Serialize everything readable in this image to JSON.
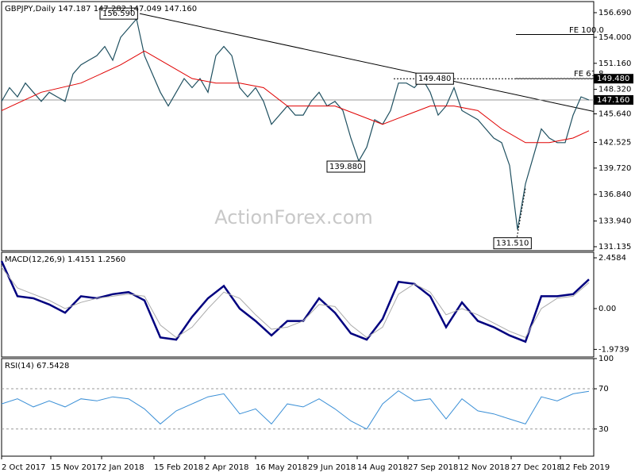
{
  "chart_data": [
    {
      "type": "line",
      "title": "GBPJPY,Daily 147.187 147.282 147.049 147.160",
      "watermark": "ActionForex.com",
      "xlim": [
        0,
        373
      ],
      "ylim": [
        130.7,
        157.9
      ],
      "yticks": [
        {
          "value": 156.69,
          "label": "156.690"
        },
        {
          "value": 154.0,
          "label": "154.000"
        },
        {
          "value": 151.16,
          "label": "151.160"
        },
        {
          "value": 148.32,
          "label": "148.320"
        },
        {
          "value": 145.64,
          "label": "145.640"
        },
        {
          "value": 142.525,
          "label": "142.525"
        },
        {
          "value": 139.72,
          "label": "139.720"
        },
        {
          "value": 136.84,
          "label": "136.840"
        },
        {
          "value": 133.94,
          "label": "133.940"
        },
        {
          "value": 131.135,
          "label": "131.135"
        }
      ],
      "series": [
        {
          "name": "GBPJPY",
          "color": "#1f5060",
          "width": 1.2,
          "x": [
            0,
            5,
            10,
            15,
            20,
            25,
            30,
            35,
            40,
            45,
            50,
            55,
            60,
            65,
            70,
            75,
            80,
            85,
            90,
            95,
            100,
            105,
            110,
            115,
            120,
            125,
            130,
            135,
            140,
            145,
            150,
            155,
            160,
            165,
            170,
            175,
            180,
            185,
            190,
            195,
            200,
            205,
            210,
            215,
            220,
            225,
            230,
            235,
            240,
            245,
            250,
            255,
            260,
            265,
            270,
            275,
            280,
            285,
            290,
            295,
            300,
            305,
            310,
            315,
            320,
            325,
            330,
            335,
            340,
            345,
            350,
            355,
            360,
            365,
            370
          ],
          "values": [
            147.0,
            148.5,
            147.5,
            149,
            148,
            147,
            148,
            147.5,
            147,
            150,
            151,
            151.5,
            152,
            153,
            151.5,
            154,
            155,
            156,
            152,
            150,
            148,
            146.5,
            148,
            149.5,
            148.5,
            149.5,
            148,
            152,
            153,
            152,
            148.5,
            147.5,
            148.5,
            147,
            144.5,
            145.5,
            146.5,
            145.5,
            145.5,
            147,
            148,
            146.5,
            147,
            146,
            143,
            140.5,
            142,
            145,
            144.5,
            146,
            149,
            149,
            148.5,
            149.5,
            148,
            145.5,
            146.5,
            148.5,
            146,
            145.5,
            145,
            144,
            143,
            142.5,
            140,
            133,
            138,
            141,
            144,
            143,
            142.5,
            142.5,
            145.5,
            147.5,
            147.16
          ]
        },
        {
          "name": "SMA",
          "color": "#e00000",
          "width": 1,
          "x": [
            0,
            25,
            50,
            75,
            90,
            105,
            120,
            135,
            150,
            165,
            180,
            195,
            210,
            225,
            240,
            255,
            270,
            285,
            300,
            315,
            330,
            345,
            360,
            370
          ],
          "values": [
            146,
            148,
            149,
            151,
            152.5,
            151,
            149.5,
            149,
            149,
            148.5,
            146.5,
            146.5,
            146.5,
            145.5,
            144.5,
            145.5,
            146.5,
            146.5,
            146,
            144,
            142.5,
            142.5,
            143,
            143.8
          ]
        }
      ],
      "lines": [
        {
          "x": [
            87,
            373
          ],
          "y": [
            156.59,
            145.9
          ],
          "color": "#000",
          "dash": "none"
        },
        {
          "x": [
            247,
            373
          ],
          "y": [
            149.48,
            149.48
          ],
          "color": "#000",
          "dash": "2,2"
        },
        {
          "x": [
            0,
            373
          ],
          "y": [
            147.16,
            147.16
          ],
          "color": "#999",
          "dash": "none"
        },
        {
          "x": [
            324,
            373
          ],
          "y": [
            154.3,
            154.3
          ],
          "color": "#000",
          "dash": "none"
        },
        {
          "x": [
            324,
            373
          ],
          "y": [
            149.5,
            149.5
          ],
          "color": "#000",
          "dash": "2,2"
        },
        {
          "x": [
            324,
            330
          ],
          "y": [
            131.51,
            137.5
          ],
          "color": "#000",
          "dash": "2,2"
        }
      ],
      "annotations": [
        {
          "text": "156.590",
          "x": 62,
          "y": 156.59,
          "box": true
        },
        {
          "text": "149.480",
          "x": 261,
          "y": 149.48,
          "box": true
        },
        {
          "text": "139.880",
          "x": 205,
          "y": 139.88,
          "box": true
        },
        {
          "text": "131.510",
          "x": 310,
          "y": 131.51,
          "box": true
        },
        {
          "text": "FE 100.0",
          "x": 356,
          "y": 154.8,
          "box": false
        },
        {
          "text": "FE 61.8",
          "x": 359,
          "y": 150.0,
          "box": false
        }
      ],
      "price_markers": [
        {
          "value": 149.48,
          "label": "149.480"
        },
        {
          "value": 147.16,
          "label": "147.160"
        }
      ]
    },
    {
      "type": "line",
      "title": "MACD(12,26,9) 1.4151 1.2560",
      "xlim": [
        0,
        373
      ],
      "ylim": [
        -2.343,
        2.727
      ],
      "yticks": [
        2.4584,
        {
          "value": 0,
          "label": "0.00"
        },
        -1.9739
      ],
      "series": [
        {
          "name": "MACD",
          "color": "#00007f",
          "width": 2.5,
          "x": [
            0,
            10,
            20,
            30,
            40,
            50,
            60,
            70,
            80,
            90,
            100,
            110,
            120,
            130,
            140,
            150,
            160,
            170,
            180,
            190,
            200,
            210,
            220,
            230,
            240,
            250,
            260,
            270,
            280,
            290,
            300,
            310,
            320,
            330,
            340,
            350,
            360,
            370
          ],
          "values": [
            2.3,
            0.6,
            0.5,
            0.2,
            -0.2,
            0.6,
            0.5,
            0.7,
            0.8,
            0.4,
            -1.4,
            -1.5,
            -0.4,
            0.5,
            1.1,
            0.0,
            -0.6,
            -1.3,
            -0.6,
            -0.6,
            0.5,
            -0.2,
            -1.2,
            -1.5,
            -0.5,
            1.3,
            1.2,
            0.6,
            -0.9,
            0.3,
            -0.6,
            -0.9,
            -1.3,
            -1.6,
            0.6,
            0.6,
            0.7,
            1.4151
          ]
        },
        {
          "name": "Signal",
          "color": "#aaaaaa",
          "width": 1,
          "x": [
            0,
            10,
            20,
            30,
            40,
            50,
            60,
            70,
            80,
            90,
            100,
            110,
            120,
            130,
            140,
            150,
            160,
            170,
            180,
            190,
            200,
            210,
            220,
            230,
            240,
            250,
            260,
            270,
            280,
            290,
            300,
            310,
            320,
            330,
            340,
            350,
            360,
            370
          ],
          "values": [
            2.0,
            1.0,
            0.7,
            0.4,
            0.0,
            0.3,
            0.5,
            0.6,
            0.7,
            0.6,
            -0.8,
            -1.4,
            -0.9,
            0.0,
            0.8,
            0.5,
            -0.3,
            -1.0,
            -0.9,
            -0.6,
            0.2,
            0.1,
            -0.8,
            -1.4,
            -0.9,
            0.7,
            1.2,
            0.8,
            -0.3,
            0.0,
            -0.3,
            -0.7,
            -1.1,
            -1.4,
            0.0,
            0.5,
            0.6,
            1.256
          ]
        }
      ]
    },
    {
      "type": "line",
      "title": "RSI(14) 67.5428",
      "xlim": [
        0,
        373
      ],
      "ylim": [
        3,
        100
      ],
      "yticks": [
        100,
        70,
        30
      ],
      "levels": [
        70,
        30
      ],
      "xticks": [
        {
          "value": 0,
          "label": "2 Oct 2017"
        },
        {
          "value": 31,
          "label": "15 Nov 2017"
        },
        {
          "value": 63,
          "label": "2 Jan 2018"
        },
        {
          "value": 96,
          "label": "15 Feb 2018"
        },
        {
          "value": 128,
          "label": "2 Apr 2018"
        },
        {
          "value": 160,
          "label": "16 May 2018"
        },
        {
          "value": 193,
          "label": "29 Jun 2018"
        },
        {
          "value": 224,
          "label": "14 Aug 2018"
        },
        {
          "value": 256,
          "label": "27 Sep 2018"
        },
        {
          "value": 288,
          "label": "12 Nov 2018"
        },
        {
          "value": 321,
          "label": "27 Dec 2018"
        },
        {
          "value": 352,
          "label": "12 Feb 2019"
        }
      ],
      "series": [
        {
          "name": "RSI",
          "color": "#3a8fd6",
          "width": 1,
          "x": [
            0,
            10,
            20,
            30,
            40,
            50,
            60,
            70,
            80,
            90,
            100,
            110,
            120,
            130,
            140,
            150,
            160,
            170,
            180,
            190,
            200,
            210,
            220,
            230,
            240,
            250,
            260,
            270,
            280,
            290,
            300,
            310,
            320,
            330,
            340,
            350,
            360,
            370
          ],
          "values": [
            55,
            60,
            52,
            58,
            52,
            60,
            58,
            62,
            60,
            50,
            35,
            48,
            55,
            62,
            65,
            45,
            50,
            35,
            55,
            52,
            60,
            50,
            38,
            30,
            55,
            68,
            58,
            60,
            40,
            60,
            48,
            45,
            40,
            35,
            62,
            58,
            65,
            67.5428
          ]
        }
      ]
    }
  ]
}
